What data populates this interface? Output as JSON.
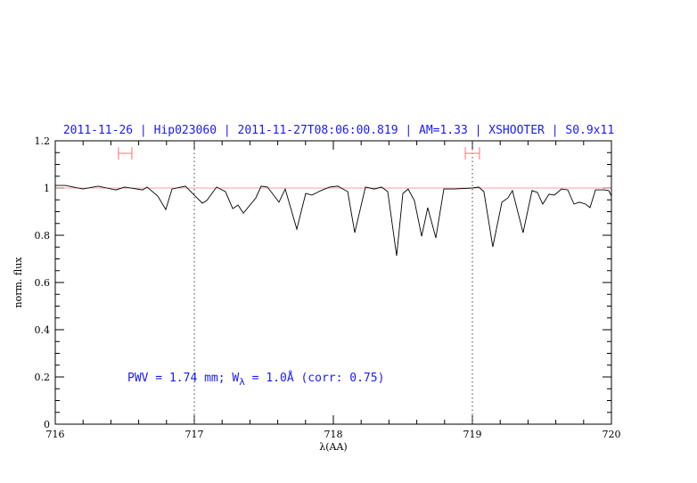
{
  "chart_data": {
    "type": "line",
    "title": "2011-11-26 | Hip023060 | 2011-11-27T08:06:00.819 | AM=1.33 | XSHOOTER | S0.9x11",
    "xlabel": "λ(AA)",
    "ylabel": "norm. flux",
    "xlim": [
      716,
      720
    ],
    "ylim": [
      0,
      1.2
    ],
    "x_ticks": [
      "716",
      "717",
      "718",
      "719",
      "720"
    ],
    "y_ticks": [
      "0",
      "0.2",
      "0.4",
      "0.6",
      "0.8",
      "1",
      "1.2"
    ],
    "grid": false,
    "reference_line": 1.0,
    "vertical_markers": [
      717,
      719
    ],
    "ranges": [
      [
        716.455,
        716.551
      ],
      [
        718.949,
        719.051
      ]
    ],
    "range_level": 1.147,
    "annotation": {
      "pre": "PWV = 1.74 mm; W",
      "sub": "λ",
      "post": " = 1.0Å (corr: 0.75)"
    },
    "colors": {
      "spectrum": "#000000",
      "text": "#1a1aff",
      "ranges": "#ff7070",
      "reference": "#ee8888"
    },
    "series": [
      {
        "x": [
          716.0,
          716.006,
          716.071,
          716.199,
          716.308,
          716.436,
          716.5,
          716.628,
          716.66,
          716.737,
          716.795,
          716.84,
          716.936,
          717.0,
          717.058,
          717.09,
          717.16,
          717.224,
          717.276,
          717.314,
          717.353,
          717.442,
          717.481,
          717.526,
          717.609,
          717.654,
          717.737,
          717.801,
          717.846,
          717.91,
          717.974,
          718.032,
          718.103,
          718.154,
          718.231,
          718.295,
          718.346,
          718.391,
          718.455,
          718.5,
          718.538,
          718.583,
          718.635,
          718.679,
          718.737,
          718.795,
          718.872,
          719.0,
          719.045,
          719.083,
          719.147,
          719.212,
          719.256,
          719.288,
          719.365,
          719.429,
          719.468,
          719.506,
          719.551,
          719.59,
          719.641,
          719.686,
          719.731,
          719.769,
          719.814,
          719.846,
          719.885,
          719.949,
          719.981,
          720.0
        ],
        "y": [
          1.01,
          1.011,
          1.011,
          0.996,
          1.008,
          0.992,
          1.004,
          0.992,
          1.004,
          0.966,
          0.909,
          0.996,
          1.008,
          0.97,
          0.936,
          0.947,
          1.004,
          0.985,
          0.913,
          0.928,
          0.894,
          0.958,
          1.008,
          1.004,
          0.94,
          0.996,
          0.826,
          0.977,
          0.97,
          0.989,
          1.004,
          1.008,
          0.985,
          0.811,
          1.004,
          0.996,
          1.004,
          0.985,
          0.713,
          0.977,
          0.996,
          0.947,
          0.796,
          0.917,
          0.789,
          0.996,
          0.996,
          1.0,
          1.004,
          0.985,
          0.751,
          0.94,
          0.958,
          0.989,
          0.811,
          0.989,
          0.981,
          0.932,
          0.974,
          0.97,
          0.996,
          0.992,
          0.932,
          0.94,
          0.932,
          0.917,
          0.992,
          0.992,
          0.989,
          0.966
        ]
      }
    ]
  }
}
